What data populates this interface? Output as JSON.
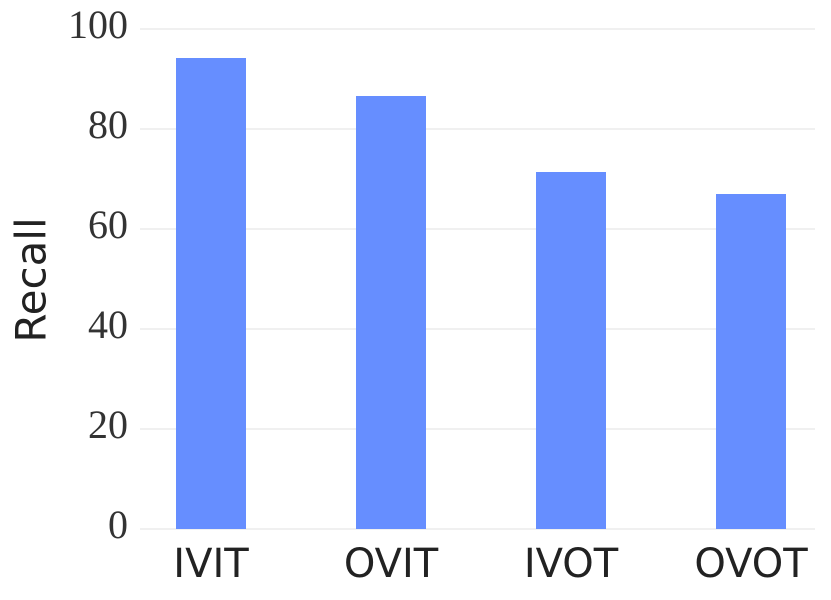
{
  "chart_data": {
    "type": "bar",
    "y_label": "Recall",
    "categories": [
      "IVIT",
      "OVIT",
      "IVOT",
      "OVOT"
    ],
    "values": [
      94.2,
      86.6,
      71.4,
      67
    ],
    "color": "#668eff",
    "ylim": [
      0,
      100
    ],
    "yticks": [
      0,
      20,
      40,
      60,
      80,
      100
    ],
    "grid": true
  }
}
